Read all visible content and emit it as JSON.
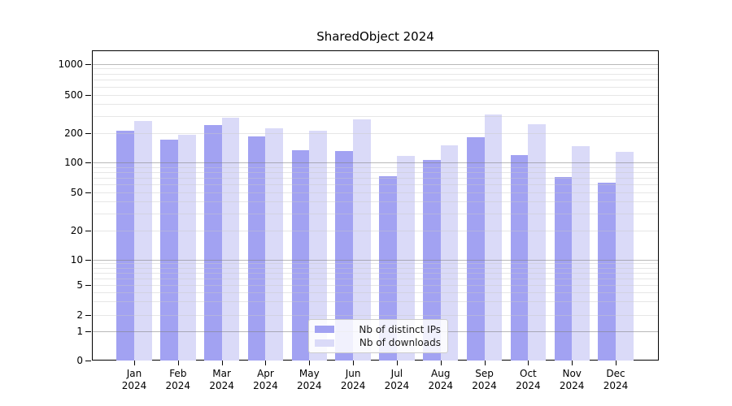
{
  "title": "SharedObject 2024",
  "chart_data": {
    "type": "bar",
    "title": "SharedObject 2024",
    "yscale": "symlog",
    "grid": "horizontal",
    "legend_position": "lower center",
    "categories": [
      "Jan",
      "Feb",
      "Mar",
      "Apr",
      "May",
      "Jun",
      "Jul",
      "Aug",
      "Sep",
      "Oct",
      "Nov",
      "Dec"
    ],
    "category_year_suffix": "2024",
    "y_ticks": [
      1000,
      500,
      200,
      100,
      50,
      20,
      10,
      5,
      2,
      1,
      0
    ],
    "ylim": [
      0,
      1340
    ],
    "series": [
      {
        "name": "Nb of distinct IPs",
        "color": "#a2a2f2",
        "values": [
          208,
          170,
          239,
          185,
          133,
          131,
          72,
          105,
          180,
          119,
          71,
          62
        ]
      },
      {
        "name": "Nb of downloads",
        "color": "#dadaf8",
        "values": [
          265,
          192,
          288,
          222,
          210,
          278,
          116,
          149,
          310,
          247,
          145,
          127
        ]
      }
    ]
  },
  "colors": {
    "grid_major": "#808080",
    "grid_minor": "#c8c8c8",
    "axis": "#000000",
    "background": "#ffffff"
  }
}
